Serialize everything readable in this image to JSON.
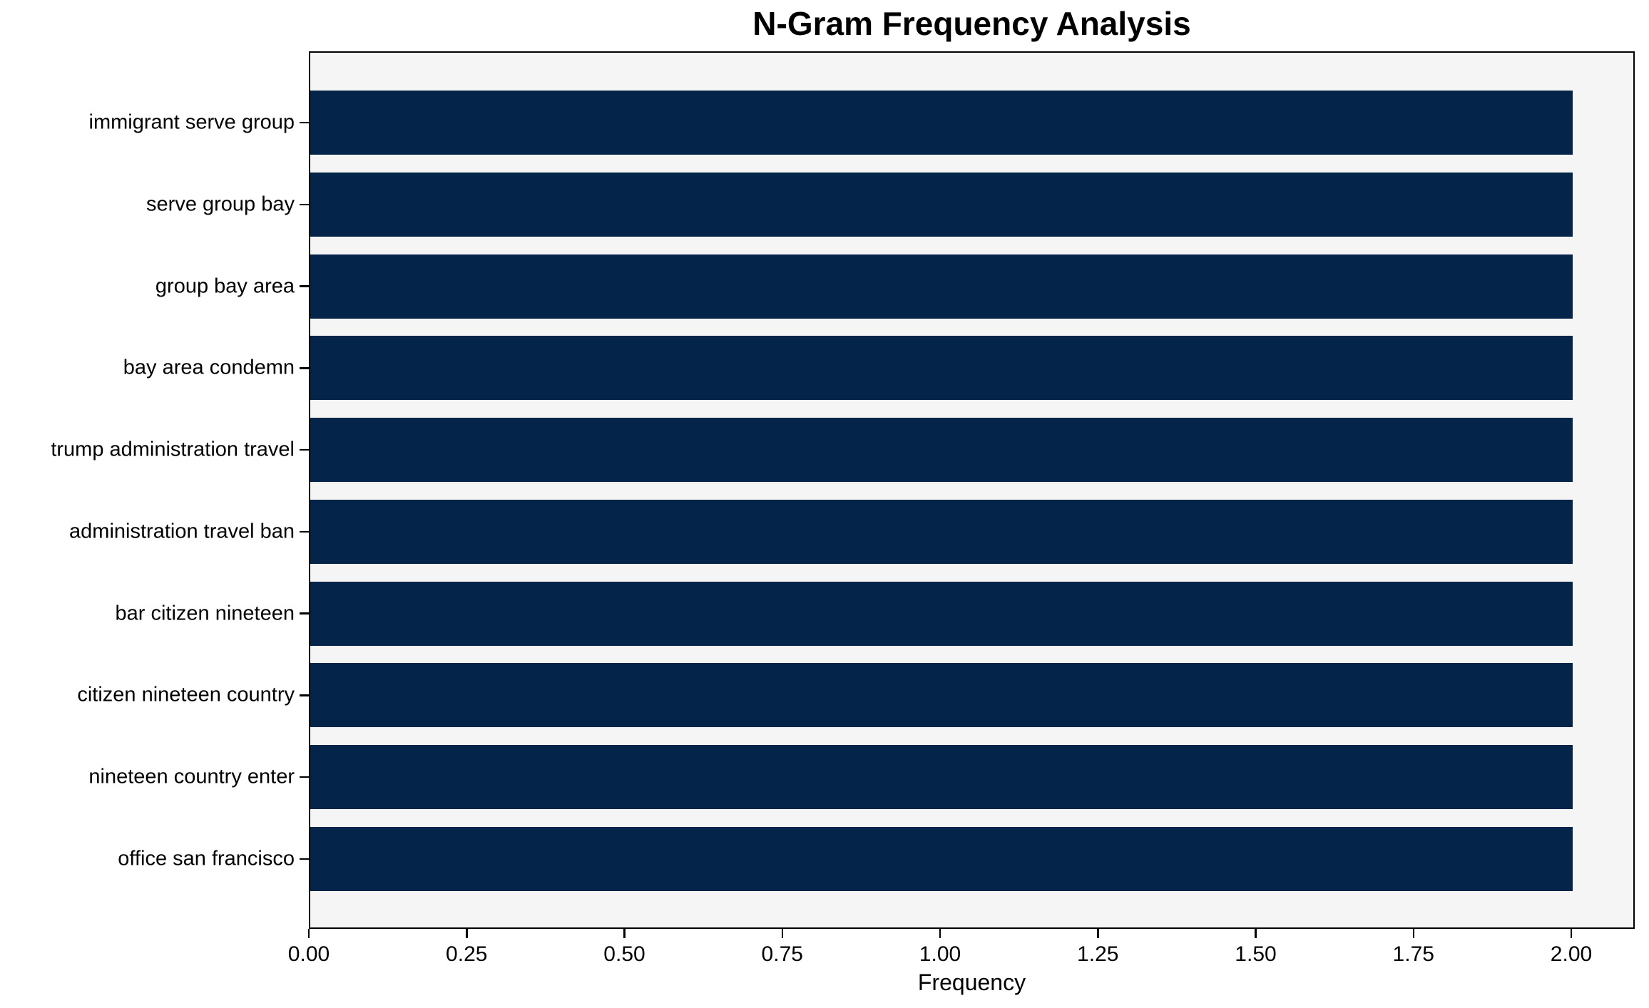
{
  "chart_data": {
    "type": "bar",
    "orientation": "horizontal",
    "title": "N-Gram Frequency Analysis",
    "xlabel": "Frequency",
    "categories": [
      "immigrant serve group",
      "serve group bay",
      "group bay area",
      "bay area condemn",
      "trump administration travel",
      "administration travel ban",
      "bar citizen nineteen",
      "citizen nineteen country",
      "nineteen country enter",
      "office san francisco"
    ],
    "values": [
      2,
      2,
      2,
      2,
      2,
      2,
      2,
      2,
      2,
      2
    ],
    "xlim": [
      0,
      2.096
    ],
    "xticks": [
      "0.00",
      "0.25",
      "0.50",
      "0.75",
      "1.00",
      "1.25",
      "1.50",
      "1.75",
      "2.00"
    ],
    "xtick_values": [
      0,
      0.25,
      0.5,
      0.75,
      1.0,
      1.25,
      1.5,
      1.75,
      2.0
    ],
    "grid": false,
    "colors": {
      "bar": "#05244a",
      "plot_bg": "#f5f5f5",
      "figure_bg": "#ffffff",
      "axis": "#000000",
      "text": "#000000"
    }
  }
}
